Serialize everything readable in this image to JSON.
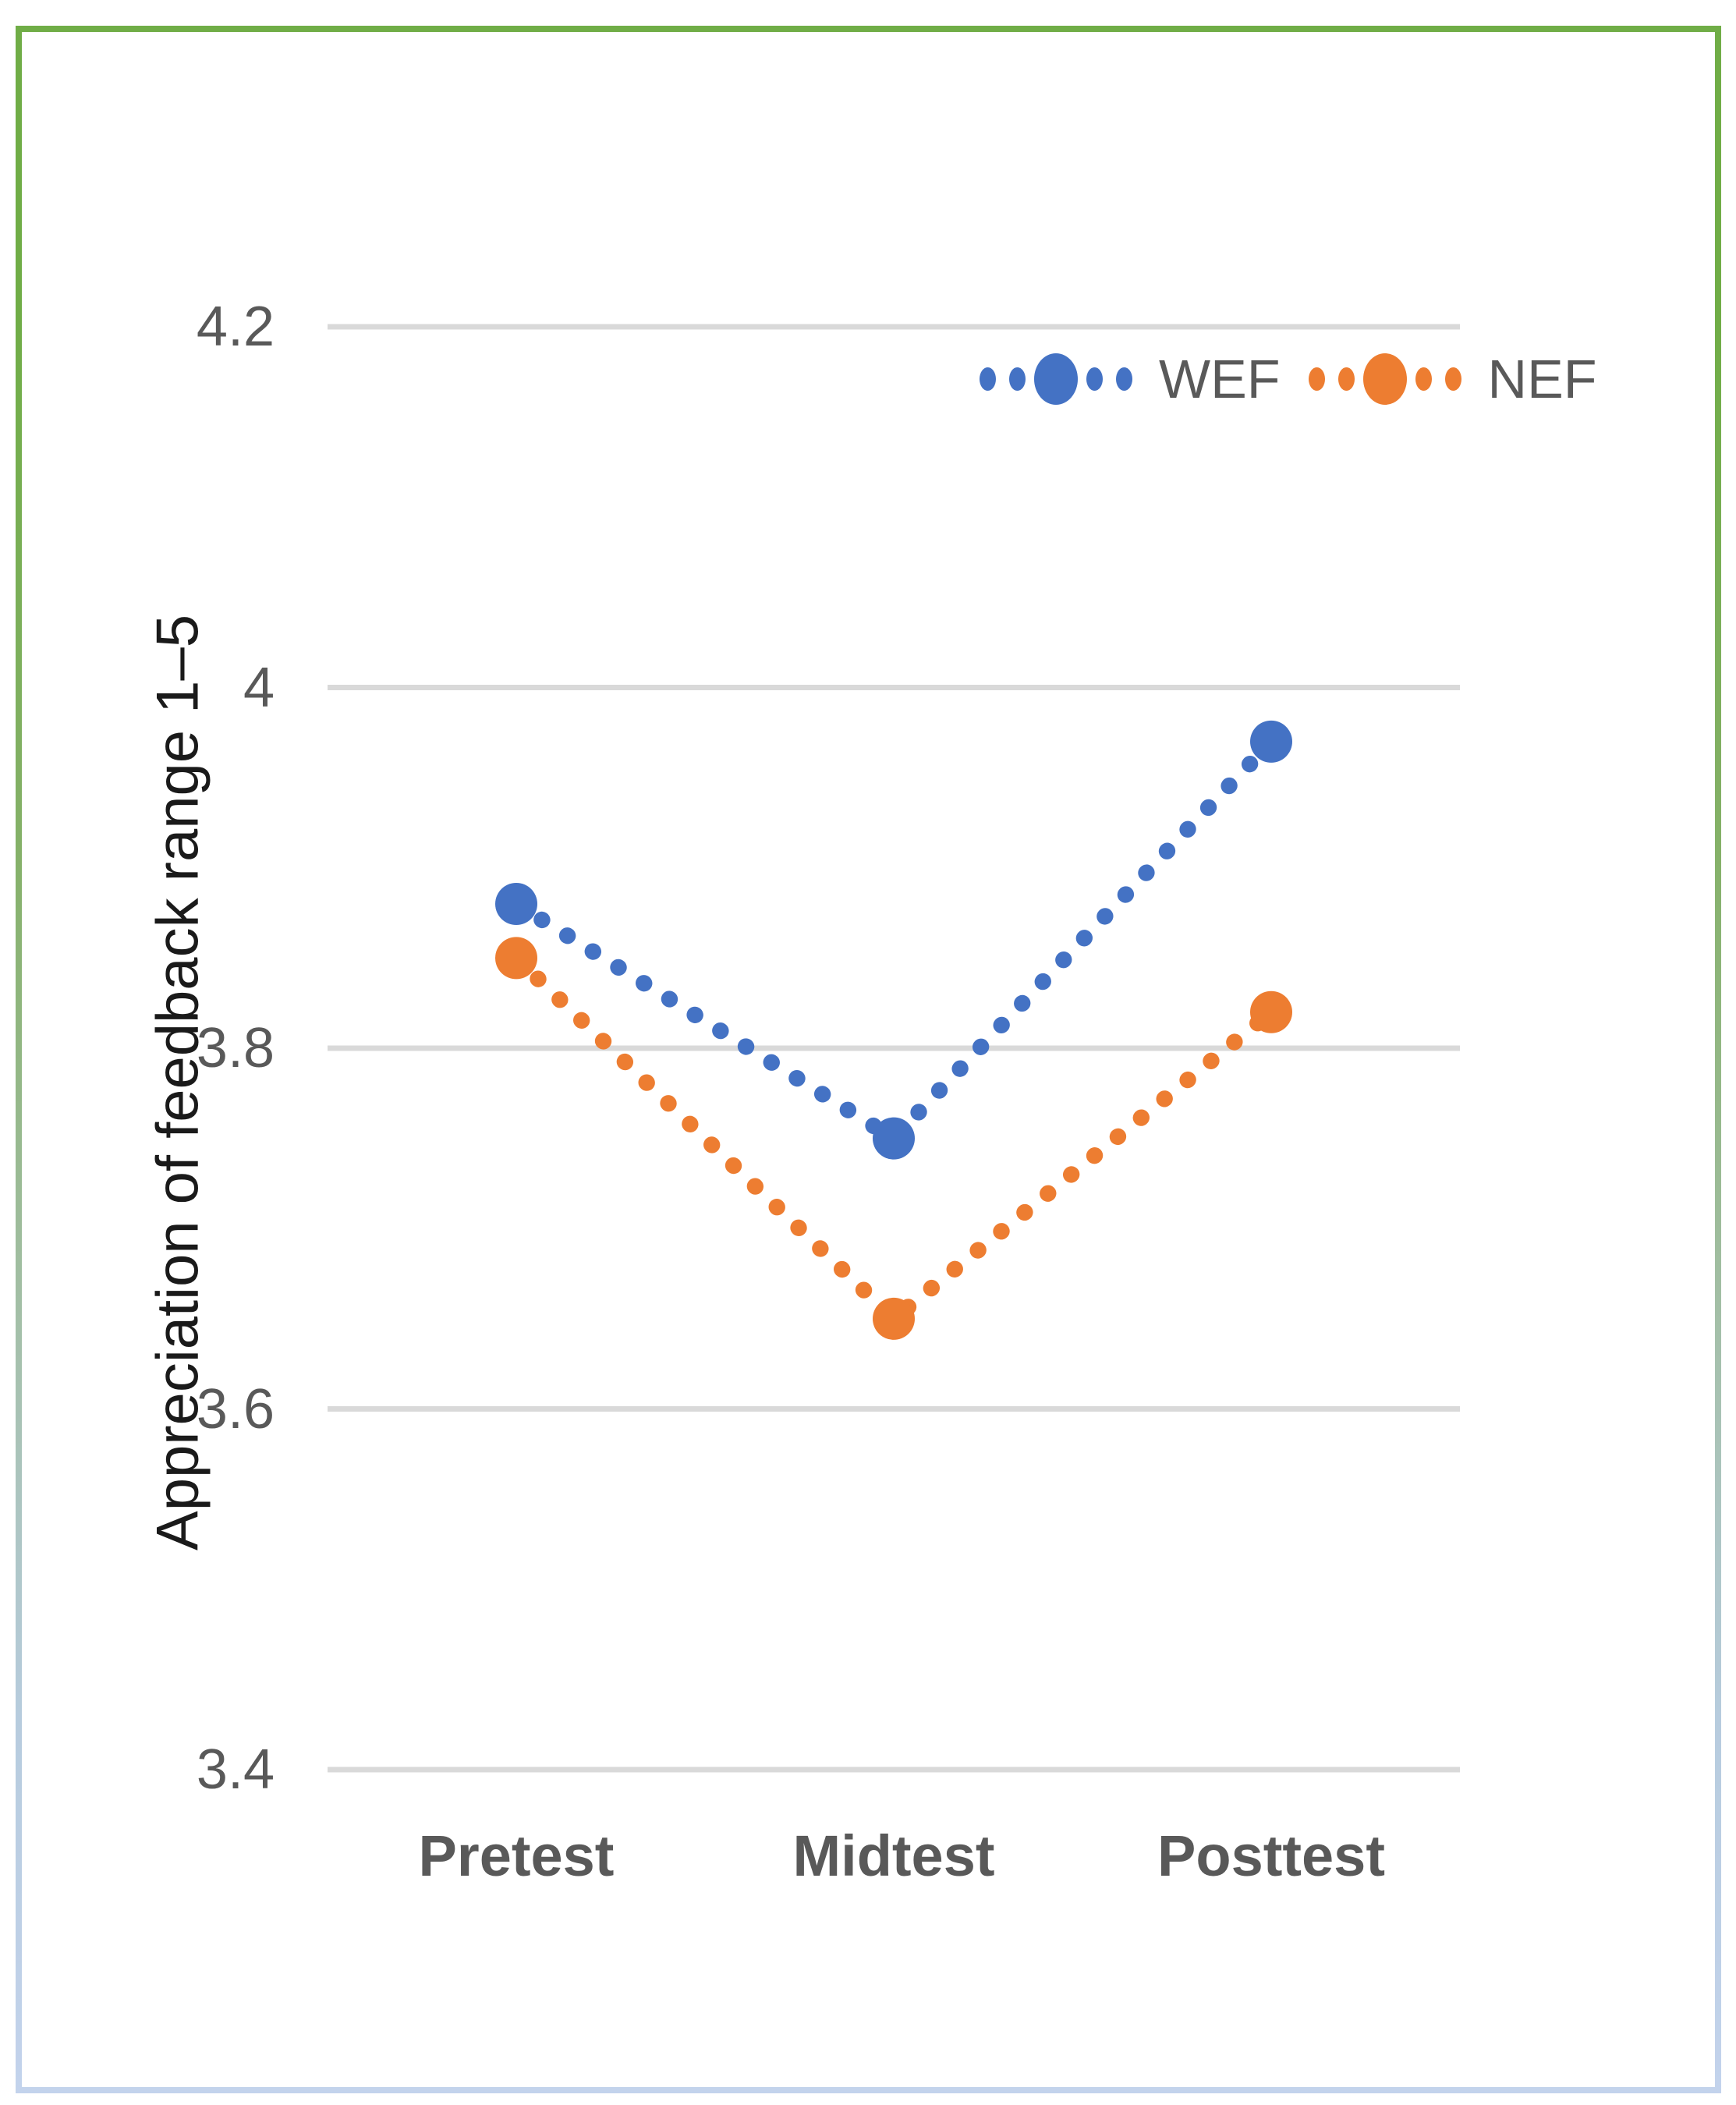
{
  "chart_data": {
    "type": "line",
    "title": "",
    "categories": [
      "Pretest",
      "Midtest",
      "Posttest"
    ],
    "series": [
      {
        "name": "WEF",
        "color": "#4472C4",
        "values": [
          3.88,
          3.75,
          3.97
        ]
      },
      {
        "name": "NEF",
        "color": "#ED7D31",
        "values": [
          3.85,
          3.65,
          3.82
        ]
      }
    ],
    "ylabel": "Appreciation of feedback range 1–5",
    "xlabel": "",
    "ylim": [
      3.4,
      4.2
    ],
    "ytick_interval": 0.2,
    "yticks": [
      {
        "value": 4.2,
        "label": "4.2"
      },
      {
        "value": 4.0,
        "label": "4"
      },
      {
        "value": 3.8,
        "label": "3.8"
      },
      {
        "value": 3.6,
        "label": "3.6"
      },
      {
        "value": 3.4,
        "label": "3.4"
      }
    ],
    "grid": "horizontal",
    "gridline_color": "#D9D9D9",
    "legend_position": "top-right-inside",
    "line_style": "dotted",
    "marker_style": "large-filled-circle-at-datapoint"
  },
  "frame": {
    "border_gradient_top": "#70AD47",
    "border_gradient_bottom": "#C3D3EC"
  },
  "text_colors": {
    "axis_ticks": "#595959",
    "category_labels": "#595959",
    "axis_title": "#1a1a1a"
  }
}
